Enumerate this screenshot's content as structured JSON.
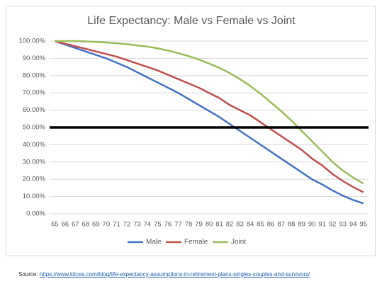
{
  "chart_data": {
    "type": "line",
    "title": "Life Expectancy: Male vs Female vs Joint",
    "categories": [
      "65",
      "66",
      "67",
      "68",
      "69",
      "70",
      "71",
      "72",
      "73",
      "74",
      "75",
      "76",
      "77",
      "78",
      "79",
      "80",
      "81",
      "82",
      "83",
      "84",
      "85",
      "86",
      "87",
      "88",
      "89",
      "90",
      "91",
      "92",
      "93",
      "94",
      "95"
    ],
    "series": [
      {
        "name": "Male",
        "color": "#4472c4",
        "values": [
          100,
          98,
          96,
          94,
          92,
          90,
          87.5,
          85,
          82,
          79,
          76,
          73,
          70,
          66.5,
          63,
          59.5,
          56,
          52,
          48,
          44,
          40,
          36,
          32,
          28,
          24,
          20,
          17,
          13.5,
          10.5,
          8,
          6
        ]
      },
      {
        "name": "Female",
        "color": "#c0504d",
        "values": [
          100,
          98.5,
          97,
          95.5,
          94,
          92.5,
          91,
          89,
          87,
          85,
          83,
          80.5,
          78,
          75.5,
          73,
          70,
          67,
          63,
          60,
          57,
          53,
          49,
          45,
          41,
          37,
          32,
          28,
          23,
          19,
          15.5,
          12.5
        ]
      },
      {
        "name": "Joint",
        "color": "#9bbb59",
        "values": [
          100,
          100,
          100,
          99.8,
          99.5,
          99.2,
          98.7,
          98.2,
          97.5,
          96.8,
          95.8,
          94.5,
          93,
          91.3,
          89.3,
          87,
          84.5,
          81.5,
          78,
          74,
          69.5,
          64.5,
          59.5,
          54,
          48,
          42,
          36,
          30,
          25,
          21,
          17.5
        ]
      }
    ],
    "ylim": [
      0,
      100
    ],
    "yticks": [
      {
        "value": 0,
        "label": "0.00%"
      },
      {
        "value": 10,
        "label": "10.00%"
      },
      {
        "value": 20,
        "label": "20.00%"
      },
      {
        "value": 30,
        "label": "30.00%"
      },
      {
        "value": 40,
        "label": "40.00%"
      },
      {
        "value": 50,
        "label": "50.00%"
      },
      {
        "value": 60,
        "label": "60.00%"
      },
      {
        "value": 70,
        "label": "70.00%"
      },
      {
        "value": 80,
        "label": "80.00%"
      },
      {
        "value": 90,
        "label": "90.00%"
      },
      {
        "value": 100,
        "label": "100.00%"
      }
    ],
    "grid": true,
    "reference_line": 50,
    "legend": "bottom"
  },
  "source": {
    "label": "Source:",
    "url": "https://www.kitces.com/blog/life-expectancy-assumptions-in-retirement-plans-singles-couples-and-survivors/"
  }
}
